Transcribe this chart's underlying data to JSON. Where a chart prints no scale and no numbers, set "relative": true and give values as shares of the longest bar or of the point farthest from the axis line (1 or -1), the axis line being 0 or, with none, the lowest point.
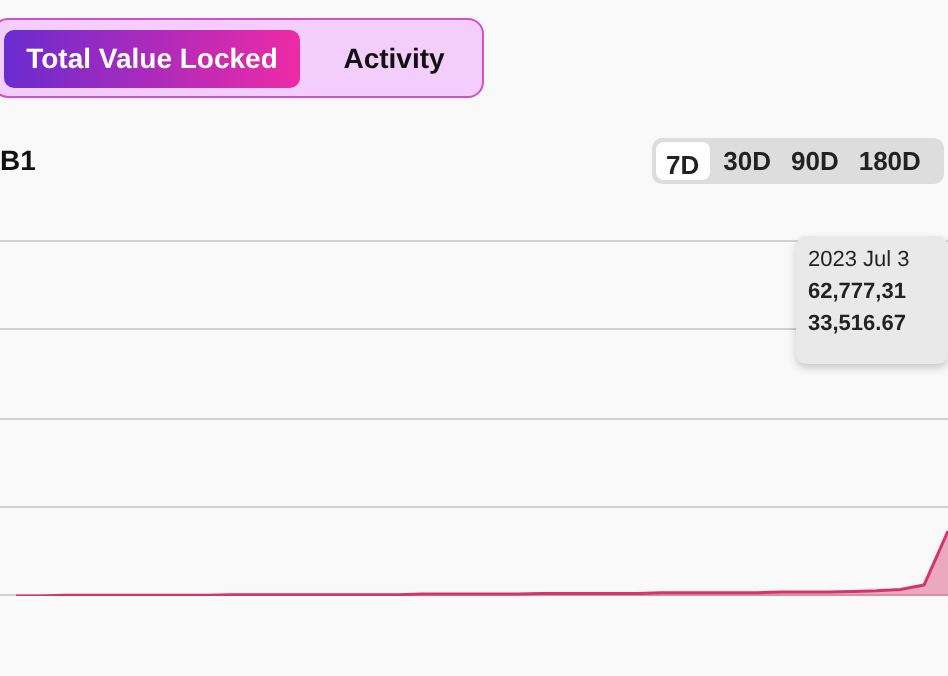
{
  "chart_data": {
    "type": "area",
    "title": "B1",
    "relative": true,
    "legend": false,
    "marker": "none",
    "categories": [
      null,
      null,
      null,
      null,
      null,
      null,
      null,
      null,
      null,
      null,
      null,
      null,
      null,
      null,
      null,
      null,
      null,
      null,
      null,
      null,
      null,
      null,
      null,
      null,
      null,
      null,
      null,
      null,
      null,
      null,
      null,
      null,
      null,
      null,
      null,
      null,
      null,
      null,
      null,
      null
    ],
    "series": [
      {
        "color": "#d6336c",
        "values": [
          0,
          0,
          0.01,
          0.01,
          0.01,
          0.01,
          0.01,
          0.01,
          0.01,
          0.02,
          0.02,
          0.02,
          0.02,
          0.02,
          0.02,
          0.02,
          0.02,
          0.03,
          0.03,
          0.03,
          0.03,
          0.03,
          0.04,
          0.04,
          0.04,
          0.04,
          0.04,
          0.05,
          0.05,
          0.05,
          0.05,
          0.05,
          0.06,
          0.06,
          0.06,
          0.07,
          0.08,
          0.1,
          0.17,
          1
        ]
      }
    ],
    "annotations": [
      "Total Value Locked",
      "Activity",
      "7D",
      "30D",
      "90D",
      "180D",
      "2023 Jul 3",
      "62,777,31",
      "33,516.67"
    ]
  }
}
